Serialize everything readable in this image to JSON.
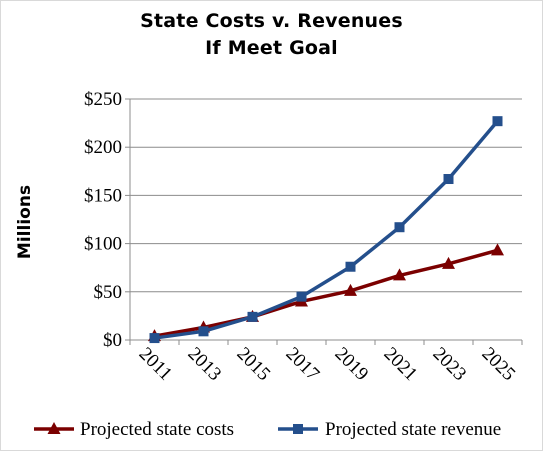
{
  "chart_data": {
    "type": "line",
    "title_lines": [
      "State Costs v. Revenues",
      "If Meet Goal"
    ],
    "xlabel": "",
    "ylabel": "Millions",
    "categories": [
      "2011",
      "2013",
      "2015",
      "2017",
      "2019",
      "2021",
      "2023",
      "2025"
    ],
    "ylim": [
      0,
      250
    ],
    "y_ticks": [
      0,
      50,
      100,
      150,
      200,
      250
    ],
    "y_tick_labels": [
      "$0",
      "$50",
      "$100",
      "$150",
      "$200",
      "$250"
    ],
    "grid": true,
    "legend_position": "bottom",
    "series": [
      {
        "name": "Projected state costs",
        "values": [
          4,
          13,
          24,
          40,
          51,
          67,
          79,
          93
        ],
        "color": "#7b0000",
        "marker": "triangle"
      },
      {
        "name": "Projected state revenue",
        "values": [
          2,
          9,
          24,
          45,
          76,
          117,
          167,
          227
        ],
        "color": "#244f8c",
        "marker": "square"
      }
    ]
  }
}
